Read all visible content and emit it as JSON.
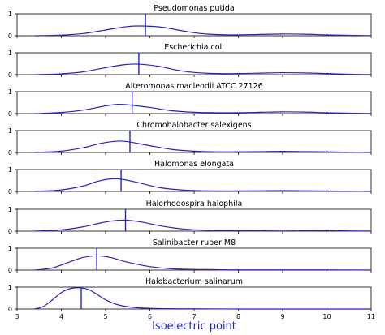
{
  "chart_data": {
    "type": "line",
    "xlabel": "Isoelectric point",
    "xlim": [
      3,
      11
    ],
    "xticks": [
      "3",
      "4",
      "5",
      "6",
      "7",
      "8",
      "9",
      "10",
      "11"
    ],
    "ylim": [
      0,
      1
    ],
    "yticks": [
      "0",
      "1"
    ],
    "grid": false,
    "line_color": "#2222cc",
    "panels": [
      {
        "title": "Pseudomonas putida",
        "marker": 5.9,
        "x": [
          3.4,
          4.0,
          4.5,
          5.0,
          5.5,
          5.9,
          6.3,
          6.8,
          7.2,
          7.8,
          8.5,
          9.0,
          9.5,
          10.0,
          10.5,
          11.0
        ],
        "y": [
          0.0,
          0.03,
          0.1,
          0.26,
          0.42,
          0.44,
          0.38,
          0.2,
          0.09,
          0.04,
          0.06,
          0.08,
          0.07,
          0.04,
          0.02,
          0.0
        ]
      },
      {
        "title": "Escherichia coli",
        "marker": 5.75,
        "x": [
          3.4,
          4.0,
          4.5,
          5.0,
          5.4,
          5.75,
          6.2,
          6.6,
          7.0,
          7.5,
          8.0,
          8.5,
          9.0,
          9.5,
          10.0,
          10.5,
          11.0
        ],
        "y": [
          0.0,
          0.04,
          0.13,
          0.32,
          0.45,
          0.48,
          0.38,
          0.21,
          0.1,
          0.05,
          0.05,
          0.07,
          0.09,
          0.08,
          0.05,
          0.02,
          0.0
        ]
      },
      {
        "title": "Alteromonas macleodii ATCC 27126",
        "marker": 5.6,
        "x": [
          3.4,
          4.0,
          4.5,
          5.0,
          5.3,
          5.6,
          6.0,
          6.5,
          7.0,
          7.5,
          8.0,
          8.5,
          9.0,
          9.5,
          10.0,
          10.5,
          11.0
        ],
        "y": [
          0.0,
          0.05,
          0.16,
          0.35,
          0.42,
          0.38,
          0.28,
          0.13,
          0.06,
          0.04,
          0.04,
          0.06,
          0.08,
          0.07,
          0.04,
          0.02,
          0.0
        ]
      },
      {
        "title": "Chromohalobacter salexigens",
        "marker": 5.55,
        "x": [
          3.4,
          4.0,
          4.5,
          4.9,
          5.3,
          5.55,
          6.0,
          6.5,
          7.0,
          7.5,
          8.0,
          8.5,
          9.0,
          9.5,
          10.0,
          10.5,
          11.0
        ],
        "y": [
          0.0,
          0.06,
          0.22,
          0.42,
          0.52,
          0.48,
          0.31,
          0.14,
          0.06,
          0.03,
          0.03,
          0.04,
          0.05,
          0.04,
          0.03,
          0.01,
          0.0
        ]
      },
      {
        "title": "Halomonas elongata",
        "marker": 5.35,
        "x": [
          3.4,
          4.0,
          4.5,
          4.8,
          5.1,
          5.35,
          5.7,
          6.2,
          6.7,
          7.2,
          7.8,
          8.5,
          9.0,
          9.5,
          10.0,
          10.5,
          11.0
        ],
        "y": [
          0.0,
          0.07,
          0.25,
          0.45,
          0.57,
          0.56,
          0.42,
          0.18,
          0.07,
          0.03,
          0.02,
          0.03,
          0.04,
          0.03,
          0.02,
          0.01,
          0.0
        ]
      },
      {
        "title": "Halorhodospira halophila",
        "marker": 5.45,
        "x": [
          3.4,
          4.0,
          4.5,
          4.9,
          5.2,
          5.45,
          5.8,
          6.3,
          6.8,
          7.3,
          7.8,
          8.5,
          9.0,
          9.5,
          10.0,
          10.5,
          11.0
        ],
        "y": [
          0.0,
          0.06,
          0.2,
          0.38,
          0.48,
          0.5,
          0.42,
          0.22,
          0.09,
          0.04,
          0.03,
          0.04,
          0.05,
          0.04,
          0.03,
          0.01,
          0.0
        ]
      },
      {
        "title": "Salinibacter ruber M8",
        "marker": 4.8,
        "x": [
          3.4,
          3.8,
          4.2,
          4.5,
          4.8,
          5.1,
          5.5,
          6.0,
          6.5,
          7.0,
          7.5,
          8.0,
          9.0,
          10.0,
          11.0
        ],
        "y": [
          0.0,
          0.1,
          0.38,
          0.58,
          0.65,
          0.58,
          0.36,
          0.16,
          0.06,
          0.03,
          0.02,
          0.01,
          0.01,
          0.01,
          0.0
        ]
      },
      {
        "title": "Halobacterium salinarum",
        "marker": 4.45,
        "x": [
          3.4,
          3.6,
          3.8,
          4.0,
          4.2,
          4.4,
          4.6,
          4.8,
          5.0,
          5.3,
          5.7,
          6.2,
          7.0,
          8.0,
          9.0,
          10.0,
          11.0
        ],
        "y": [
          0.0,
          0.12,
          0.42,
          0.75,
          0.93,
          0.97,
          0.9,
          0.68,
          0.42,
          0.18,
          0.06,
          0.02,
          0.01,
          0.0,
          0.0,
          0.0,
          0.0
        ]
      }
    ]
  }
}
